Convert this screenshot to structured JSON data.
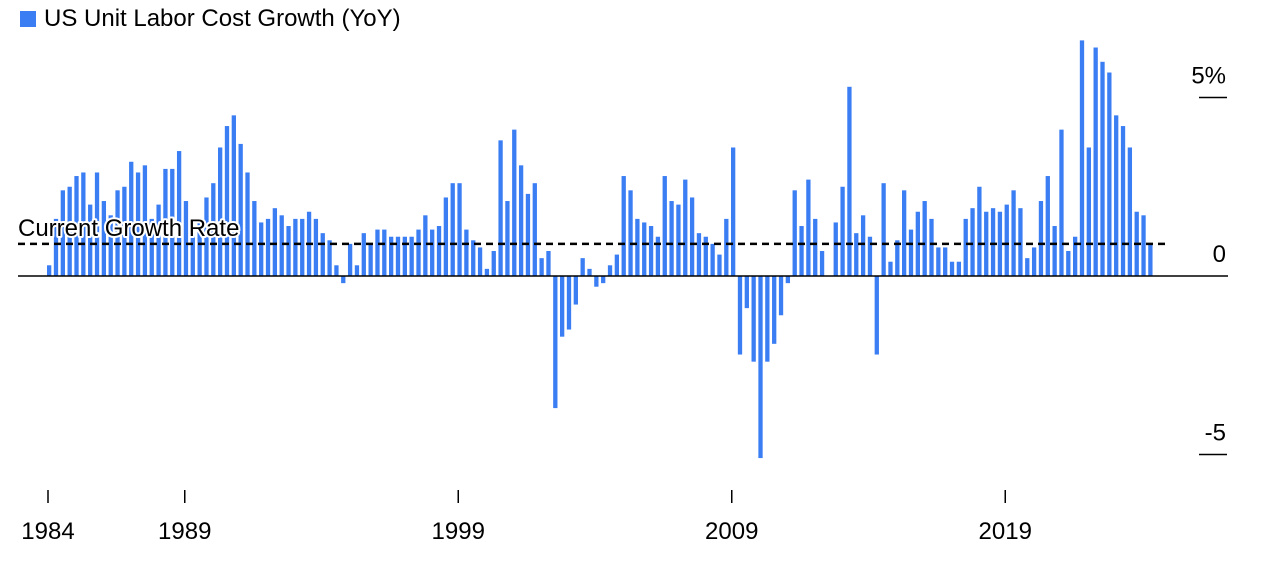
{
  "chart_data": {
    "type": "bar",
    "legend": [
      {
        "name": "US Unit Labor Cost Growth (YoY)",
        "color": "#3b7ef4"
      }
    ],
    "series": [
      {
        "name": "US Unit Labor Cost Growth (YoY)",
        "color": "#3b7ef4",
        "values": [
          0.3,
          1.6,
          2.4,
          2.5,
          2.8,
          2.9,
          2.0,
          2.9,
          2.1,
          1.7,
          2.4,
          2.5,
          3.2,
          2.9,
          3.1,
          1.6,
          2.0,
          3.0,
          3.0,
          3.5,
          2.1,
          1.3,
          1.6,
          2.2,
          2.6,
          3.6,
          4.2,
          4.5,
          3.7,
          2.9,
          2.1,
          1.5,
          1.6,
          1.9,
          1.7,
          1.4,
          1.6,
          1.6,
          1.8,
          1.6,
          1.2,
          1.0,
          0.3,
          -0.2,
          0.9,
          0.3,
          1.2,
          0.9,
          1.3,
          1.3,
          1.1,
          1.1,
          1.1,
          1.1,
          1.3,
          1.7,
          1.3,
          1.4,
          2.2,
          2.6,
          2.6,
          1.3,
          1.0,
          0.8,
          0.2,
          0.7,
          3.8,
          2.1,
          4.1,
          3.1,
          2.3,
          2.6,
          0.5,
          0.7,
          -3.7,
          -1.7,
          -1.5,
          -0.8,
          0.5,
          0.2,
          -0.3,
          -0.2,
          0.3,
          0.6,
          2.8,
          2.4,
          1.6,
          1.5,
          1.4,
          1.1,
          2.8,
          2.1,
          2.0,
          2.7,
          2.2,
          1.2,
          1.1,
          0.9,
          0.6,
          1.6,
          3.6,
          -2.2,
          -0.9,
          -2.4,
          -5.1,
          -2.4,
          -1.9,
          -1.1,
          -0.2,
          2.4,
          1.4,
          2.7,
          1.6,
          0.7,
          0.0,
          1.5,
          2.5,
          5.3,
          1.2,
          1.7,
          1.1,
          -2.2,
          2.6,
          0.4,
          1.0,
          2.4,
          1.3,
          1.8,
          2.1,
          1.6,
          0.8,
          0.8,
          0.4,
          0.4,
          1.6,
          1.9,
          2.5,
          1.8,
          1.9,
          1.8,
          2.0,
          2.4,
          1.9,
          0.5,
          0.8,
          2.1,
          2.8,
          1.4,
          4.1,
          0.7,
          1.1,
          6.6,
          3.6,
          6.4,
          6.0,
          5.7,
          4.5,
          4.2,
          3.6,
          1.8,
          1.7,
          0.9
        ]
      }
    ],
    "reference_line": {
      "label": "Current Growth Rate",
      "value": 0.9
    },
    "x_ticks": [
      {
        "label": "1984",
        "value": 1984
      },
      {
        "label": "1989",
        "value": 1989
      },
      {
        "label": "1999",
        "value": 1999
      },
      {
        "label": "2009",
        "value": 2009
      },
      {
        "label": "2019",
        "value": 2019
      }
    ],
    "y_ticks": [
      {
        "label": "5%",
        "value": 5
      },
      {
        "label": "0",
        "value": 0
      },
      {
        "label": "-5",
        "value": -5
      }
    ],
    "ylim": [
      -6,
      6.8
    ],
    "xlim": [
      1984,
      2027
    ],
    "title": "",
    "xlabel": "",
    "ylabel": "",
    "grid": false,
    "legend_position": "top-left"
  }
}
